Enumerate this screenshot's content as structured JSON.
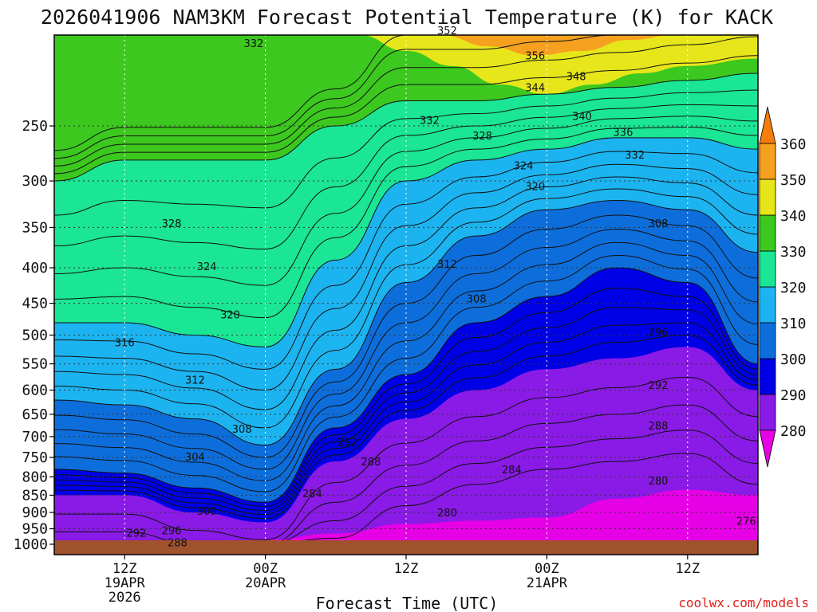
{
  "chart_data": {
    "type": "heatmap",
    "title": "2026041906 NAM3KM Forecast Potential Temperature (K) for KACK",
    "xlabel": "Forecast Time (UTC)",
    "ylabel": "",
    "credit": "coolwx.com/models",
    "y_axis": {
      "scale": "pressure (hPa)",
      "ticks": [
        250,
        300,
        350,
        400,
        450,
        500,
        550,
        600,
        650,
        700,
        750,
        800,
        850,
        900,
        950,
        1000
      ]
    },
    "x_axis": {
      "range_hours": [
        0,
        60
      ],
      "ticks": [
        {
          "hour": 6,
          "line1": "12Z",
          "line2": "19APR",
          "line3": "2026"
        },
        {
          "hour": 18,
          "line1": "00Z",
          "line2": "20APR",
          "line3": ""
        },
        {
          "hour": 30,
          "line1": "12Z",
          "line2": "",
          "line3": ""
        },
        {
          "hour": 42,
          "line1": "00Z",
          "line2": "21APR",
          "line3": ""
        },
        {
          "hour": 54,
          "line1": "12Z",
          "line2": "",
          "line3": ""
        }
      ]
    },
    "colorbar": {
      "levels": [
        280,
        290,
        300,
        310,
        320,
        330,
        340,
        350,
        360
      ],
      "colors": [
        "#e600e6",
        "#8a1ae6",
        "#0000e6",
        "#0d6edb",
        "#1cb4f0",
        "#1ae696",
        "#3cc81e",
        "#e6e61a",
        "#f5a01e",
        "#f57d0a"
      ]
    },
    "contour_labels": [
      {
        "value": "352",
        "hour": 33.5,
        "p": 182
      },
      {
        "value": "356",
        "hour": 41,
        "p": 198
      },
      {
        "value": "348",
        "hour": 44.5,
        "p": 212
      },
      {
        "value": "344",
        "hour": 41,
        "p": 220
      },
      {
        "value": "340",
        "hour": 45,
        "p": 242
      },
      {
        "value": "336",
        "hour": 48.5,
        "p": 255
      },
      {
        "value": "332",
        "hour": 49.5,
        "p": 275
      },
      {
        "value": "332",
        "hour": 17,
        "p": 190
      },
      {
        "value": "332",
        "hour": 32,
        "p": 245
      },
      {
        "value": "328",
        "hour": 36.5,
        "p": 258
      },
      {
        "value": "324",
        "hour": 40,
        "p": 285
      },
      {
        "value": "320",
        "hour": 41,
        "p": 305
      },
      {
        "value": "328",
        "hour": 10,
        "p": 345
      },
      {
        "value": "324",
        "hour": 13,
        "p": 398
      },
      {
        "value": "320",
        "hour": 15,
        "p": 467
      },
      {
        "value": "316",
        "hour": 6,
        "p": 512
      },
      {
        "value": "312",
        "hour": 12,
        "p": 580
      },
      {
        "value": "312",
        "hour": 33.5,
        "p": 395
      },
      {
        "value": "308",
        "hour": 36,
        "p": 443
      },
      {
        "value": "308",
        "hour": 51.5,
        "p": 345
      },
      {
        "value": "308",
        "hour": 16,
        "p": 682
      },
      {
        "value": "304",
        "hour": 12,
        "p": 748
      },
      {
        "value": "300",
        "hour": 13,
        "p": 895
      },
      {
        "value": "296",
        "hour": 51.5,
        "p": 495
      },
      {
        "value": "292",
        "hour": 51.5,
        "p": 590
      },
      {
        "value": "292",
        "hour": 25,
        "p": 712
      },
      {
        "value": "292",
        "hour": 7,
        "p": 962
      },
      {
        "value": "296",
        "hour": 10,
        "p": 955
      },
      {
        "value": "288",
        "hour": 51.5,
        "p": 675
      },
      {
        "value": "288",
        "hour": 27,
        "p": 760
      },
      {
        "value": "288",
        "hour": 10.5,
        "p": 993
      },
      {
        "value": "284",
        "hour": 39,
        "p": 780
      },
      {
        "value": "284",
        "hour": 22,
        "p": 845
      },
      {
        "value": "280",
        "hour": 51.5,
        "p": 810
      },
      {
        "value": "280",
        "hour": 33.5,
        "p": 900
      },
      {
        "value": "276",
        "hour": 59,
        "p": 925
      }
    ],
    "approx_isentrope_heights_hPa": {
      "hours": [
        0,
        6,
        12,
        18,
        24,
        30,
        36,
        42,
        48,
        54,
        60
      ],
      "theta_290": [
        850,
        850,
        900,
        930,
        760,
        660,
        600,
        560,
        540,
        520,
        600
      ],
      "theta_300": [
        780,
        790,
        830,
        870,
        680,
        570,
        480,
        440,
        400,
        420,
        550
      ],
      "theta_310": [
        620,
        630,
        660,
        720,
        560,
        420,
        360,
        330,
        320,
        330,
        380
      ],
      "theta_320": [
        480,
        480,
        500,
        520,
        390,
        300,
        280,
        270,
        260,
        260,
        270
      ],
      "theta_330": [
        300,
        280,
        280,
        280,
        250,
        230,
        230,
        225,
        220,
        215,
        210
      ]
    }
  }
}
